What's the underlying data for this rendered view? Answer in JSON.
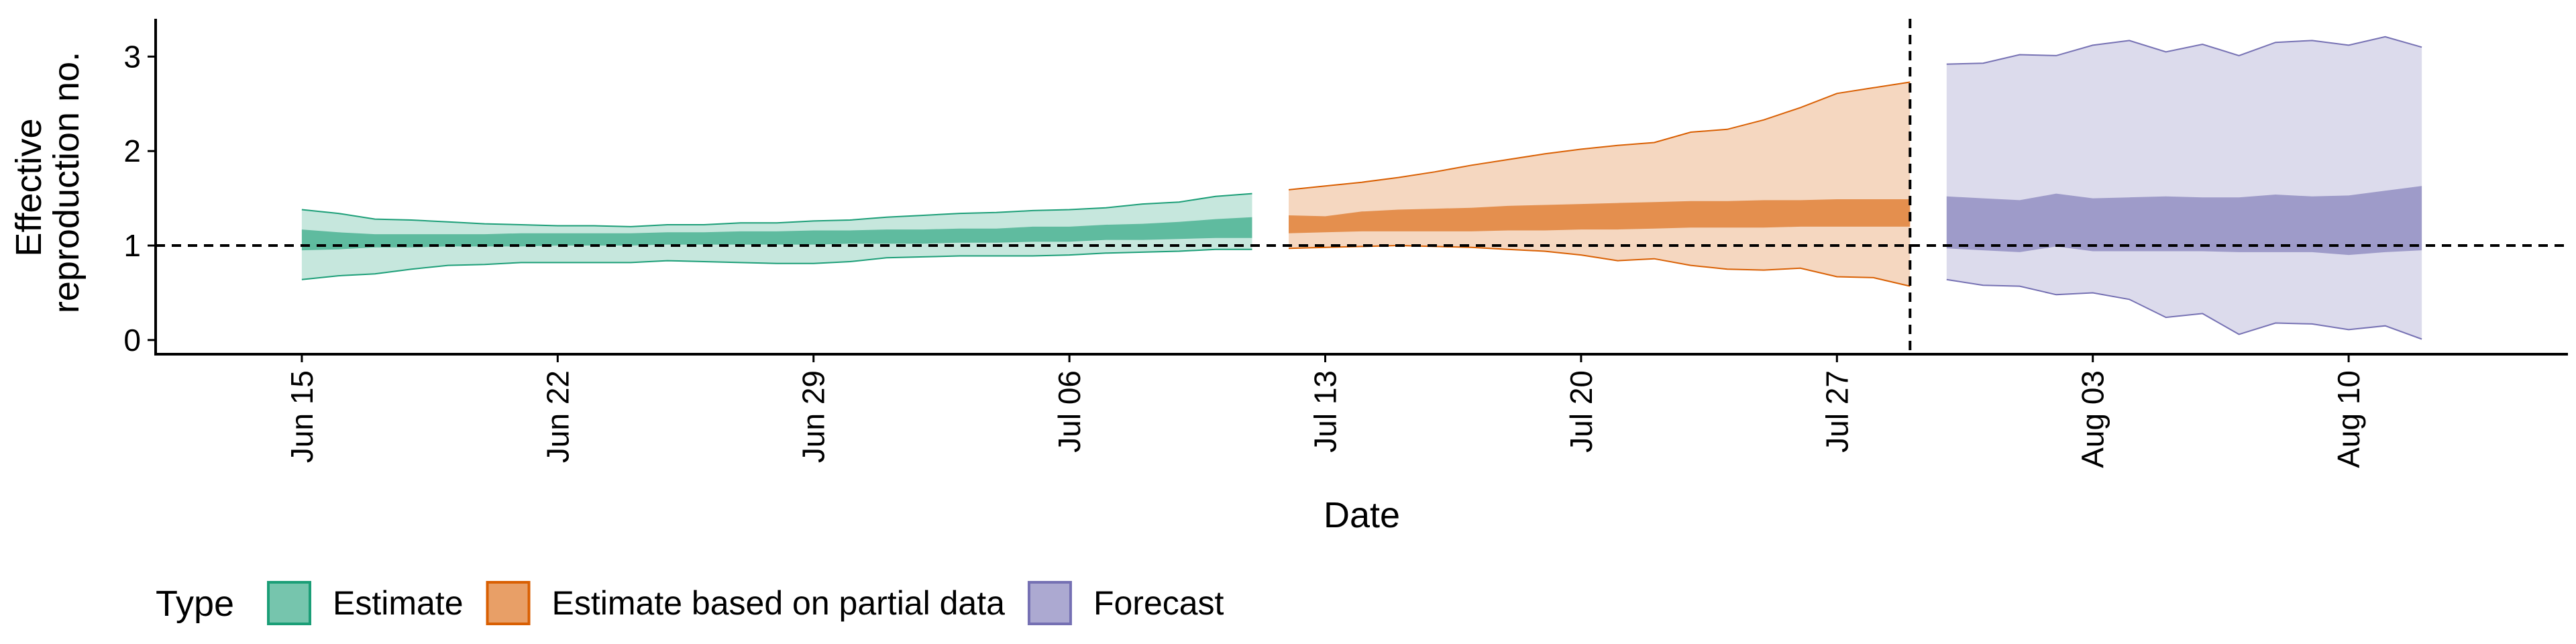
{
  "chart_data": {
    "type": "area",
    "title": "",
    "xlabel": "Date",
    "ylabel_lines": [
      "Effective",
      "reproduction no."
    ],
    "xlim": [
      "2020-06-11",
      "2020-08-16"
    ],
    "ylim": [
      -0.15,
      3.4
    ],
    "yticks": [
      0,
      1,
      2,
      3
    ],
    "xticks": [
      {
        "date": "2020-06-15",
        "label": "Jun 15"
      },
      {
        "date": "2020-06-22",
        "label": "Jun 22"
      },
      {
        "date": "2020-06-29",
        "label": "Jun 29"
      },
      {
        "date": "2020-07-06",
        "label": "Jul 06"
      },
      {
        "date": "2020-07-13",
        "label": "Jul 13"
      },
      {
        "date": "2020-07-20",
        "label": "Jul 20"
      },
      {
        "date": "2020-07-27",
        "label": "Jul 27"
      },
      {
        "date": "2020-08-03",
        "label": "Aug 03"
      },
      {
        "date": "2020-08-10",
        "label": "Aug 10"
      }
    ],
    "hline_y": 1,
    "vline_date": "2020-07-29",
    "grid": false,
    "legend": {
      "title": "Type",
      "position": "bottom-left",
      "entries": [
        "Estimate",
        "Estimate based on partial data",
        "Forecast"
      ]
    },
    "series": [
      {
        "name": "Estimate",
        "color": "#1B9E77",
        "dates": [
          "2020-06-15",
          "2020-06-16",
          "2020-06-17",
          "2020-06-18",
          "2020-06-19",
          "2020-06-20",
          "2020-06-21",
          "2020-06-22",
          "2020-06-23",
          "2020-06-24",
          "2020-06-25",
          "2020-06-26",
          "2020-06-27",
          "2020-06-28",
          "2020-06-29",
          "2020-06-30",
          "2020-07-01",
          "2020-07-02",
          "2020-07-03",
          "2020-07-04",
          "2020-07-05",
          "2020-07-06",
          "2020-07-07",
          "2020-07-08",
          "2020-07-09",
          "2020-07-10",
          "2020-07-11"
        ],
        "lower_90": [
          0.64,
          0.68,
          0.7,
          0.75,
          0.79,
          0.8,
          0.82,
          0.82,
          0.82,
          0.82,
          0.84,
          0.83,
          0.82,
          0.81,
          0.81,
          0.83,
          0.87,
          0.88,
          0.89,
          0.89,
          0.89,
          0.9,
          0.92,
          0.93,
          0.94,
          0.96,
          0.96
        ],
        "upper_90": [
          1.38,
          1.34,
          1.28,
          1.27,
          1.25,
          1.23,
          1.22,
          1.21,
          1.21,
          1.2,
          1.22,
          1.22,
          1.24,
          1.24,
          1.26,
          1.27,
          1.3,
          1.32,
          1.34,
          1.35,
          1.37,
          1.38,
          1.4,
          1.44,
          1.46,
          1.52,
          1.55
        ],
        "lower_50": [
          0.95,
          0.96,
          0.98,
          0.98,
          0.99,
          0.99,
          0.99,
          1.0,
          1.0,
          1.0,
          1.01,
          1.01,
          1.01,
          1.01,
          1.01,
          1.02,
          1.02,
          1.02,
          1.03,
          1.03,
          1.04,
          1.04,
          1.06,
          1.06,
          1.07,
          1.08,
          1.08
        ],
        "upper_50": [
          1.17,
          1.14,
          1.12,
          1.12,
          1.12,
          1.12,
          1.13,
          1.13,
          1.13,
          1.13,
          1.14,
          1.14,
          1.15,
          1.15,
          1.16,
          1.16,
          1.17,
          1.17,
          1.18,
          1.18,
          1.2,
          1.2,
          1.22,
          1.23,
          1.25,
          1.28,
          1.3
        ]
      },
      {
        "name": "Estimate based on partial data",
        "color": "#D95F02",
        "dates": [
          "2020-07-12",
          "2020-07-13",
          "2020-07-14",
          "2020-07-15",
          "2020-07-16",
          "2020-07-17",
          "2020-07-18",
          "2020-07-19",
          "2020-07-20",
          "2020-07-21",
          "2020-07-22",
          "2020-07-23",
          "2020-07-24",
          "2020-07-25",
          "2020-07-26",
          "2020-07-27",
          "2020-07-28",
          "2020-07-29"
        ],
        "lower_90": [
          0.97,
          0.98,
          0.99,
          1.0,
          0.99,
          0.98,
          0.96,
          0.94,
          0.9,
          0.84,
          0.86,
          0.79,
          0.75,
          0.74,
          0.76,
          0.67,
          0.66,
          0.57
        ],
        "upper_90": [
          1.59,
          1.63,
          1.67,
          1.72,
          1.78,
          1.85,
          1.91,
          1.97,
          2.02,
          2.06,
          2.09,
          2.2,
          2.23,
          2.33,
          2.46,
          2.61,
          2.67,
          2.73
        ],
        "lower_50": [
          1.13,
          1.14,
          1.15,
          1.15,
          1.15,
          1.15,
          1.16,
          1.16,
          1.17,
          1.17,
          1.18,
          1.19,
          1.19,
          1.19,
          1.2,
          1.2,
          1.2,
          1.2
        ],
        "upper_50": [
          1.32,
          1.31,
          1.36,
          1.38,
          1.39,
          1.4,
          1.42,
          1.43,
          1.44,
          1.45,
          1.46,
          1.47,
          1.47,
          1.48,
          1.48,
          1.49,
          1.49,
          1.49
        ]
      },
      {
        "name": "Forecast",
        "color": "#7570B3",
        "dates": [
          "2020-07-30",
          "2020-07-31",
          "2020-08-01",
          "2020-08-02",
          "2020-08-03",
          "2020-08-04",
          "2020-08-05",
          "2020-08-06",
          "2020-08-07",
          "2020-08-08",
          "2020-08-09",
          "2020-08-10",
          "2020-08-11",
          "2020-08-12"
        ],
        "lower_90": [
          0.64,
          0.58,
          0.57,
          0.48,
          0.5,
          0.43,
          0.24,
          0.28,
          0.06,
          0.18,
          0.17,
          0.11,
          0.15,
          0.01
        ],
        "upper_90": [
          2.92,
          2.93,
          3.02,
          3.01,
          3.12,
          3.17,
          3.05,
          3.13,
          3.01,
          3.15,
          3.17,
          3.12,
          3.21,
          3.1
        ],
        "lower_50": [
          0.97,
          0.95,
          0.93,
          0.99,
          0.94,
          0.94,
          0.94,
          0.94,
          0.93,
          0.93,
          0.93,
          0.9,
          0.93,
          0.95
        ],
        "upper_50": [
          1.52,
          1.5,
          1.48,
          1.55,
          1.5,
          1.51,
          1.52,
          1.51,
          1.51,
          1.54,
          1.52,
          1.53,
          1.58,
          1.63
        ]
      }
    ]
  }
}
